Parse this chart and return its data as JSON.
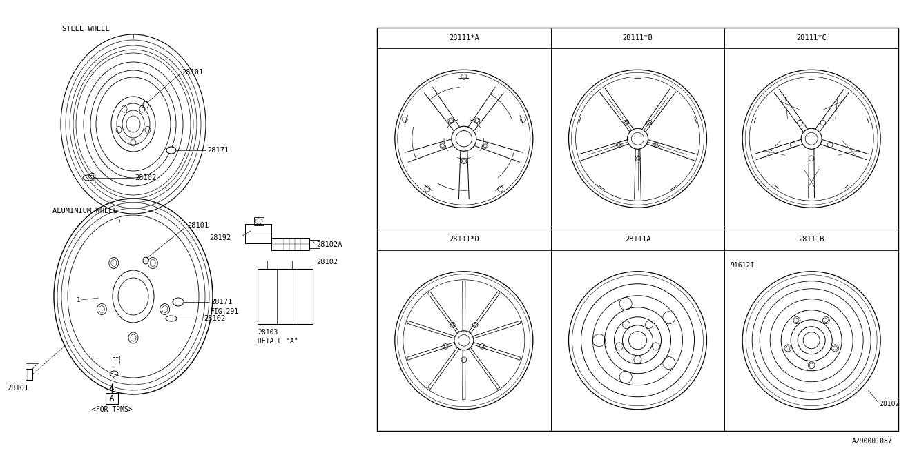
{
  "bg_color": "#ffffff",
  "line_color": "#000000",
  "lw": 0.7,
  "labels": {
    "steel_wheel": "STEEL WHEEL",
    "aluminium_wheel": "ALUMINIUM WHEEL",
    "detail_a": "DETAIL \"A\"",
    "for_tpms": "<FOR TPMS>",
    "part_ref": "A290001087"
  },
  "part_numbers": {
    "steel_28101": "28101",
    "steel_28171": "28171",
    "steel_28102": "28102",
    "alum_28101_top": "28101",
    "alum_28101_bot": "28101",
    "alum_28171": "28171",
    "alum_fig291": "FIG.291",
    "alum_28102": "28102",
    "detail_28192": "28192",
    "detail_28102a": "28102A",
    "detail_28102": "28102",
    "detail_28103": "28103"
  },
  "grid_labels": {
    "r1c1": "28111*A",
    "r1c2": "28111*B",
    "r1c3": "28111*C",
    "r2c1": "28111*D",
    "r2c2": "28111A",
    "r2c3": "28111B"
  },
  "grid_extra": {
    "91612i": "91612I",
    "28102": "28102"
  }
}
